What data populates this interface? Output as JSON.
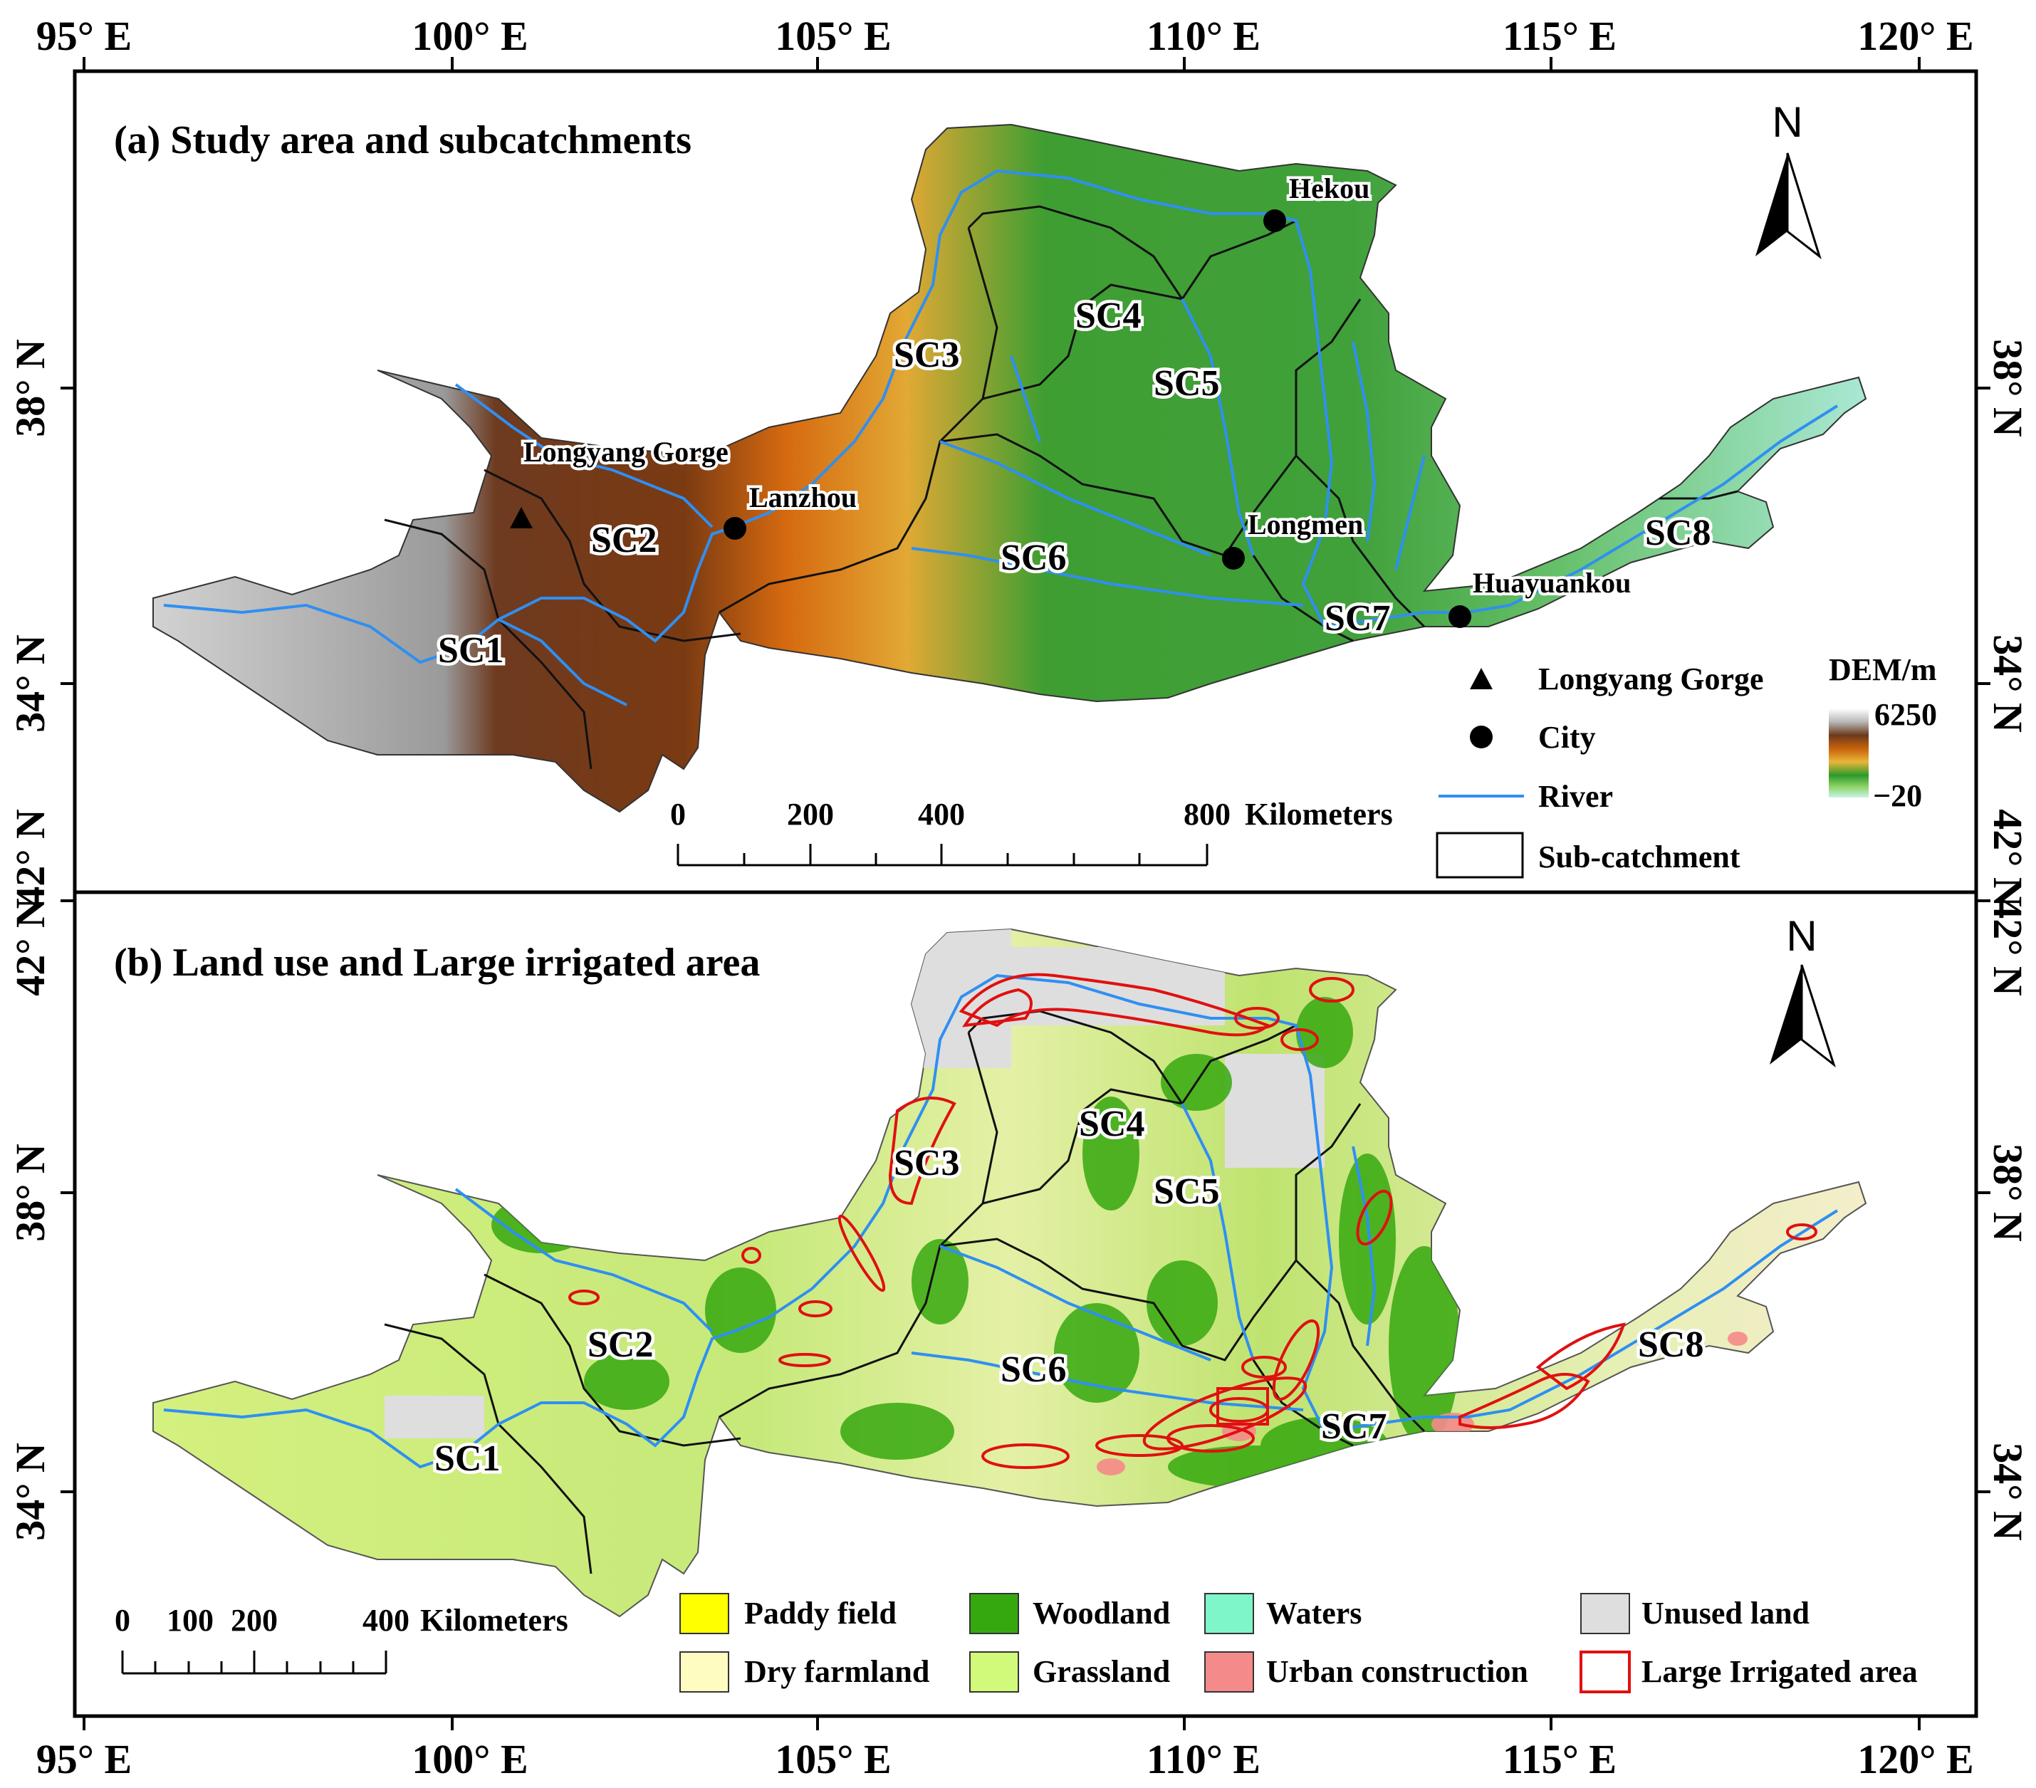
{
  "axes": {
    "longitudes": [
      "95° E",
      "100° E",
      "105° E",
      "110° E",
      "115° E",
      "120° E"
    ],
    "latitudes_upper": [
      "38° N",
      "34° N",
      "42° N"
    ],
    "latitudes_lower": [
      "42° N",
      "38° N",
      "34° N"
    ]
  },
  "panel_a": {
    "title": "(a) Study area and subcatchments",
    "north": "N",
    "subcatchments": [
      "SC1",
      "SC2",
      "SC3",
      "SC4",
      "SC5",
      "SC6",
      "SC7",
      "SC8"
    ],
    "places": {
      "hekou": "Hekou",
      "longyang": "Longyang Gorge",
      "lanzhou": "Lanzhou",
      "longmen": "Longmen",
      "huayuankou": "Huayuankou"
    },
    "scale": {
      "ticks": [
        "0",
        "200",
        "400",
        "800"
      ],
      "unit": "Kilometers"
    },
    "legend": {
      "gorge": "Longyang Gorge",
      "city": "City",
      "river": "River",
      "subcatchment": "Sub-catchment"
    },
    "dem": {
      "title": "DEM/m",
      "max": "6250",
      "min": "−20"
    }
  },
  "panel_b": {
    "title": "(b) Land use and Large irrigated area",
    "north": "N",
    "subcatchments": [
      "SC1",
      "SC2",
      "SC3",
      "SC4",
      "SC5",
      "SC6",
      "SC7",
      "SC8"
    ],
    "scale": {
      "ticks": [
        "0",
        "100",
        "200",
        "400"
      ],
      "unit": "Kilometers"
    },
    "legend": [
      {
        "label": "Paddy field",
        "color": "#ffff00"
      },
      {
        "label": "Dry farmland",
        "color": "#fffcc2"
      },
      {
        "label": "Woodland",
        "color": "#36a80f"
      },
      {
        "label": "Grassland",
        "color": "#d2fa7a"
      },
      {
        "label": "Waters",
        "color": "#7ff5ca"
      },
      {
        "label": "Urban construction",
        "color": "#f58a8a"
      },
      {
        "label": "Unused land",
        "color": "#dedede"
      },
      {
        "label": "Large Irrigated area",
        "color": "#e01010"
      }
    ]
  }
}
